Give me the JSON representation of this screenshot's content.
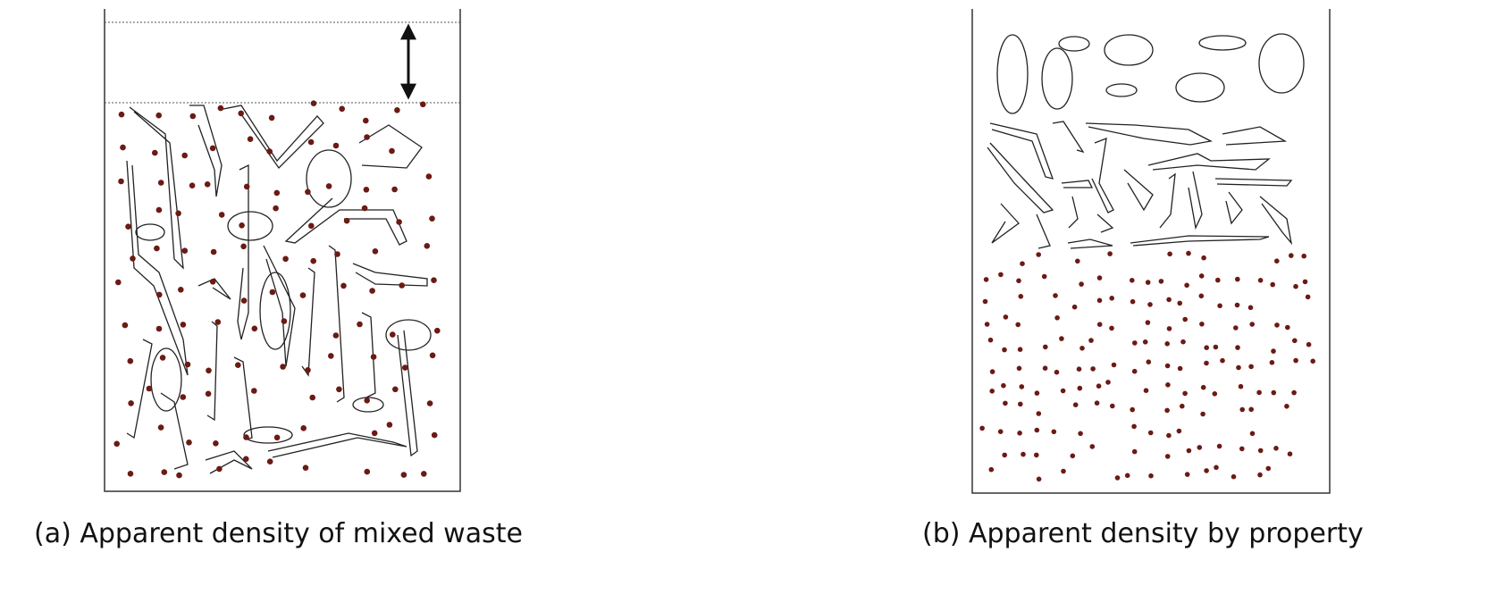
{
  "panels": [
    {
      "caption": "(a) Apparent density of mixed waste"
    },
    {
      "caption": "(b) Apparent density by property"
    }
  ]
}
